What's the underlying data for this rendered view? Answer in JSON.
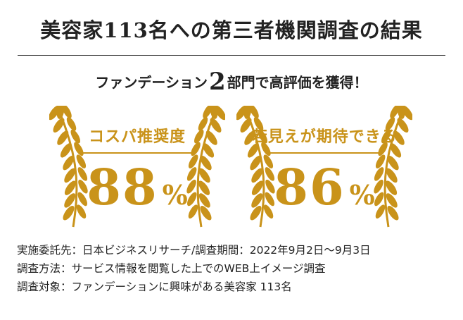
{
  "title": "美容家113名への第三者機関調査の結果",
  "subtitle": {
    "prefix": "ファンデーション",
    "number": "2",
    "suffix": "部門で高評価を獲得！"
  },
  "colors": {
    "gold": "#c9931a",
    "text": "#222222"
  },
  "awards": [
    {
      "label": "コスパ推奨度",
      "value": "88",
      "unit": "%",
      "icon": "laurel-wreath-icon"
    },
    {
      "label": "若見えが期待できる",
      "value": "86",
      "unit": "%",
      "icon": "laurel-wreath-icon"
    }
  ],
  "notes": [
    "実施委託先：日本ビジネスリサーチ/調査期間：2022年9月2日〜9月3日",
    "調査方法：サービス情報を閲覧した上でのWEB上イメージ調査",
    "調査対象：ファンデーションに興味がある美容家 113名"
  ]
}
